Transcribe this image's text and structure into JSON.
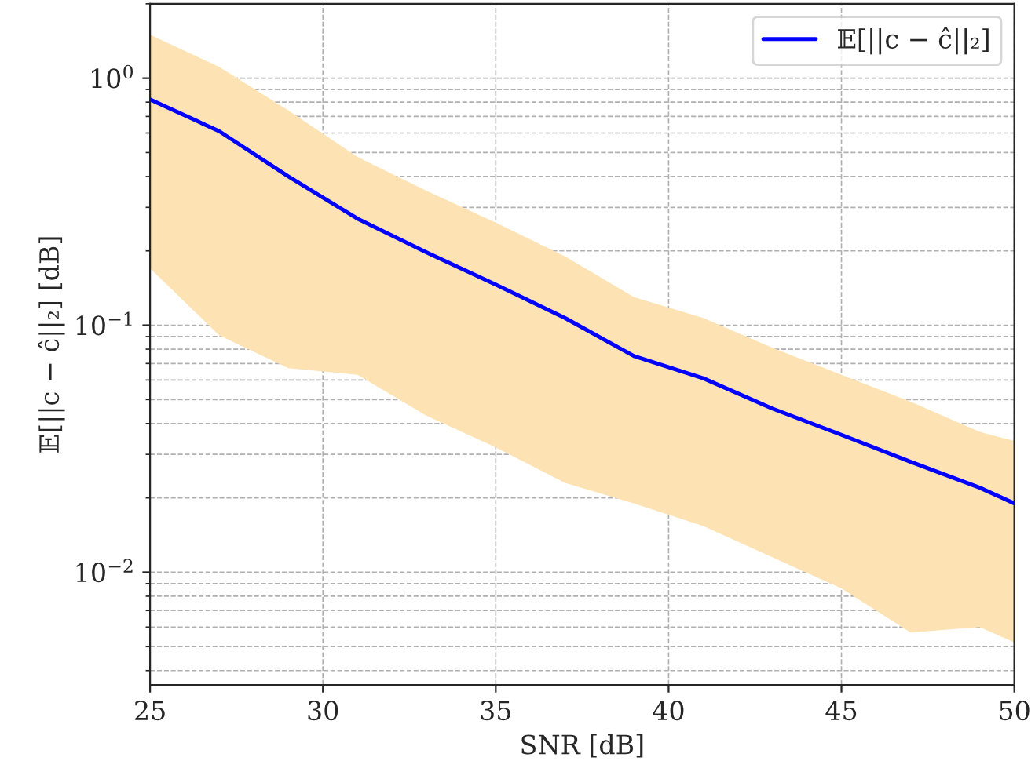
{
  "chart_data": {
    "type": "line",
    "xlabel": "SNR [dB]",
    "ylabel": "𝔼[||c − ĉ||₂] [dB]",
    "x": [
      25,
      27,
      29,
      31,
      33,
      35,
      37,
      39,
      41,
      43,
      45,
      47,
      49,
      50
    ],
    "series": [
      {
        "name": "𝔼[||c − ĉ||₂]",
        "color": "#0000ff",
        "values": [
          0.82,
          0.61,
          0.4,
          0.27,
          0.197,
          0.146,
          0.107,
          0.075,
          0.061,
          0.046,
          0.036,
          0.028,
          0.022,
          0.019
        ],
        "lower": [
          0.17,
          0.091,
          0.067,
          0.063,
          0.043,
          0.032,
          0.023,
          0.019,
          0.0154,
          0.0115,
          0.0086,
          0.0057,
          0.006,
          0.0052
        ],
        "upper": [
          1.5,
          1.11,
          0.74,
          0.48,
          0.35,
          0.26,
          0.19,
          0.13,
          0.107,
          0.081,
          0.063,
          0.049,
          0.037,
          0.034
        ]
      }
    ],
    "xlim": [
      25,
      50
    ],
    "xticks": [
      25,
      30,
      35,
      40,
      45,
      50
    ],
    "ylim": [
      0.0035,
      2
    ],
    "yticks": [
      {
        "value": 0.01,
        "label": "10$^{−2}$"
      },
      {
        "value": 0.1,
        "label": "10$^{−1}$"
      },
      {
        "value": 1,
        "label": "10$^{0}$"
      }
    ],
    "log": "y",
    "grid": true,
    "legend": "top right",
    "line_style": "solid",
    "marker": "none"
  }
}
